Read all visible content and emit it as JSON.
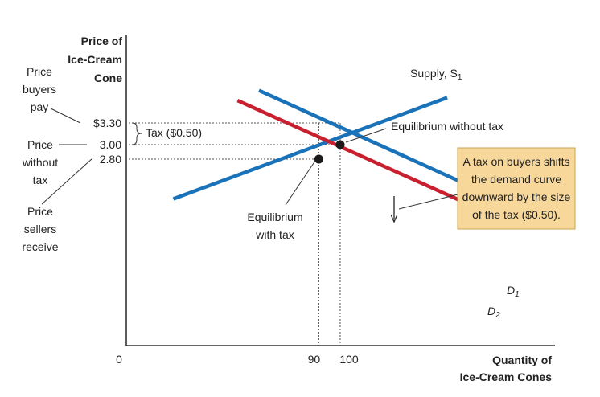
{
  "chart_data": {
    "type": "line",
    "title": "",
    "ylabel": [
      "Price of",
      "Ice-Cream",
      "Cone"
    ],
    "xlabel": [
      "Quantity of",
      "Ice-Cream Cones"
    ],
    "origin_label": "0",
    "x_ticks": [
      {
        "value": 90,
        "label": "90"
      },
      {
        "value": 100,
        "label": "100"
      }
    ],
    "y_ticks": [
      {
        "value": 3.3,
        "label": "$3.30"
      },
      {
        "value": 3.0,
        "label": "3.00"
      },
      {
        "value": 2.8,
        "label": "2.80"
      }
    ],
    "series": [
      {
        "name": "Supply, S1",
        "name_main": "Supply, S",
        "name_sub": "1",
        "color": "#1a72b8",
        "points": [
          [
            22,
            2.25
          ],
          [
            150,
            3.65
          ]
        ]
      },
      {
        "name": "D1",
        "name_main": "D",
        "name_sub": "1",
        "color": "#1a72b8",
        "points": [
          [
            62,
            3.75
          ],
          [
            180,
            2.17
          ]
        ]
      },
      {
        "name": "D2",
        "name_main": "D",
        "name_sub": "2",
        "color": "#c8202e",
        "points": [
          [
            52,
            3.61
          ],
          [
            171,
            2.03
          ]
        ]
      }
    ],
    "equilibria": [
      {
        "x": 100,
        "y": 3.0,
        "label": "Equilibrium without tax"
      },
      {
        "x": 90,
        "y": 2.8,
        "label_lines": [
          "Equilibrium",
          "with tax"
        ]
      }
    ],
    "tax_brace_label": "Tax ($0.50)",
    "side_labels": {
      "buyers_pay": [
        "Price",
        "buyers",
        "pay"
      ],
      "without_tax": [
        "Price",
        "without",
        "tax"
      ],
      "sellers_receive": [
        "Price",
        "sellers",
        "receive"
      ]
    },
    "note_lines": [
      "A tax on buyers shifts",
      "the demand curve",
      "downward by the size",
      "of the tax ($0.50)."
    ],
    "colors": {
      "blue": "#1a72b8",
      "red": "#c8202e",
      "note_bg": "#f8d89a",
      "note_border": "#c9a452",
      "axis": "#333333"
    }
  }
}
